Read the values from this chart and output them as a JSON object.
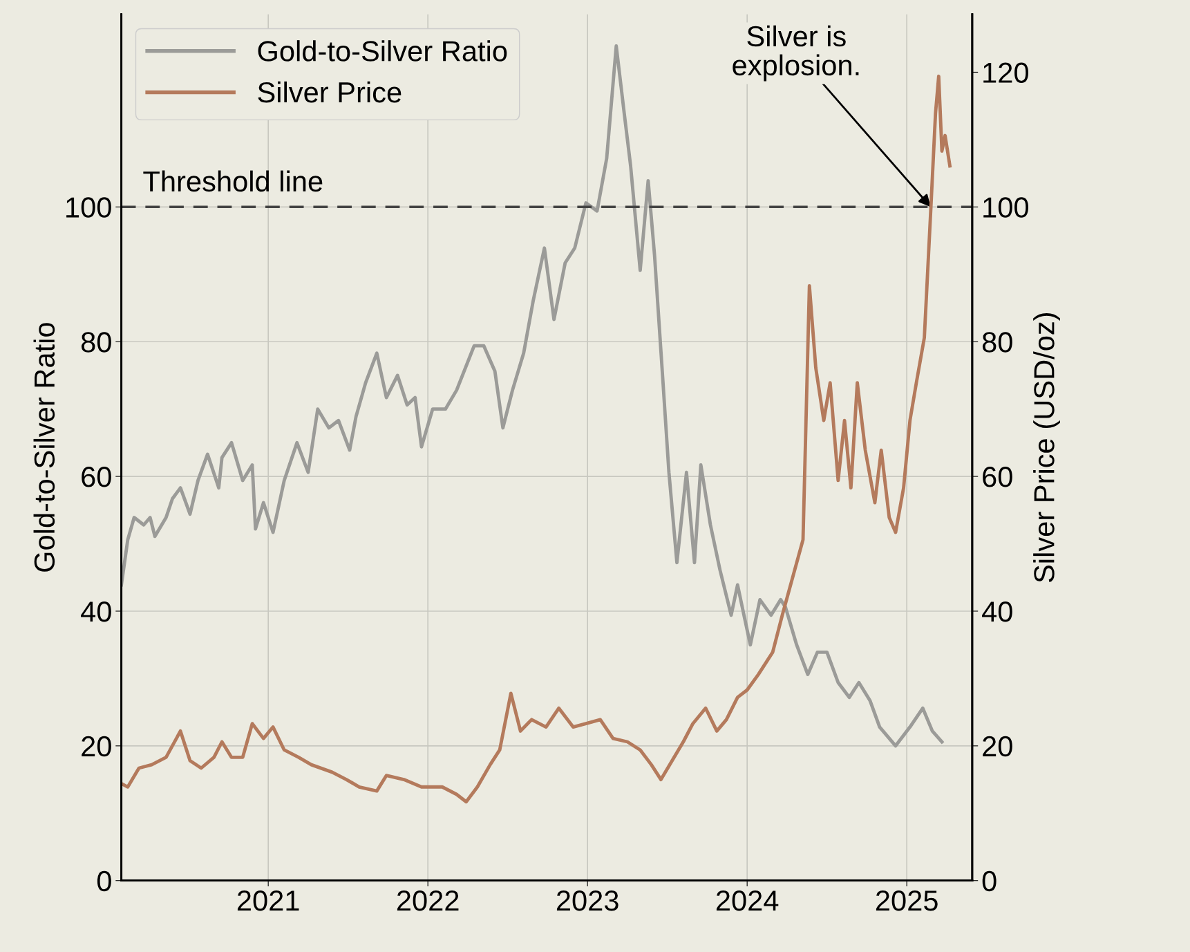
{
  "chart_data": {
    "type": "line",
    "xlabel": null,
    "ylabel": "Gold-to-Silver Ratio",
    "y2label": "Silver Price (USD/oz)",
    "xlim": [
      2020.08,
      2025.41
    ],
    "xticks": [
      2021,
      2022,
      2023,
      2024,
      2025
    ],
    "ylim": [
      0,
      128.6
    ],
    "yticks": [
      0,
      20,
      40,
      60,
      80,
      100
    ],
    "y2lim": [
      0,
      128.6
    ],
    "y2ticks": [
      0,
      20,
      40,
      60,
      80,
      100,
      120
    ],
    "grid": true,
    "legend": "top left",
    "marker": "none",
    "line_style": "solid",
    "ref_lines": [
      {
        "axis": "y",
        "value": 100,
        "label": "Threshold line",
        "color": "#444444",
        "line_style": "dashed"
      }
    ],
    "annotations": [
      {
        "text": "Silver is\nexplosion.",
        "x": 2025.15,
        "y": 100
      }
    ],
    "series": [
      {
        "name": "Gold-to-Silver Ratio",
        "color": "#9b9b98",
        "axis": "y",
        "x": [
          2020.08,
          2020.12,
          2020.16,
          2020.22,
          2020.26,
          2020.29,
          2020.36,
          2020.4,
          2020.45,
          2020.51,
          2020.56,
          2020.62,
          2020.69,
          2020.71,
          2020.77,
          2020.84,
          2020.9,
          2020.92,
          2020.97,
          2021.03,
          2021.1,
          2021.18,
          2021.25,
          2021.31,
          2021.38,
          2021.44,
          2021.51,
          2021.55,
          2021.61,
          2021.68,
          2021.74,
          2021.81,
          2021.87,
          2021.92,
          2021.96,
          2022.03,
          2022.11,
          2022.18,
          2022.29,
          2022.35,
          2022.42,
          2022.47,
          2022.53,
          2022.6,
          2022.66,
          2022.73,
          2022.79,
          2022.86,
          2022.92,
          2022.99,
          2023.06,
          2023.12,
          2023.18,
          2023.23,
          2023.27,
          2023.33,
          2023.38,
          2023.42,
          2023.47,
          2023.51,
          2023.56,
          2023.62,
          2023.67,
          2023.71,
          2023.77,
          2023.83,
          2023.9,
          2023.94,
          2023.98,
          2024.02,
          2024.08,
          2024.15,
          2024.21,
          2024.24,
          2024.31,
          2024.38,
          2024.44,
          2024.5,
          2024.57,
          2024.64,
          2024.7,
          2024.77,
          2024.83,
          2024.93,
          2025.02,
          2025.1,
          2025.16,
          2025.22
        ],
        "values": [
          43.9,
          50.6,
          53.9,
          52.8,
          53.9,
          51.1,
          53.9,
          56.7,
          58.3,
          54.4,
          59.4,
          63.3,
          58.3,
          62.8,
          65,
          59.4,
          61.7,
          52.2,
          56.1,
          51.7,
          59.4,
          65,
          60.6,
          70,
          67.2,
          68.3,
          63.9,
          68.9,
          73.9,
          78.3,
          71.7,
          75,
          70.6,
          71.7,
          64.4,
          70,
          70,
          72.8,
          79.4,
          79.4,
          75.6,
          67.2,
          72.8,
          78.3,
          86.1,
          93.9,
          83.3,
          91.7,
          93.9,
          100.6,
          99.4,
          107.2,
          123.9,
          113.9,
          106.1,
          90.6,
          103.9,
          92.8,
          75,
          60.6,
          47.2,
          60.6,
          47.2,
          61.7,
          52.8,
          46.1,
          39.4,
          43.9,
          39.4,
          35,
          41.7,
          39.4,
          41.7,
          40.6,
          35,
          30.6,
          33.9,
          33.9,
          29.4,
          27.2,
          29.4,
          26.7,
          22.8,
          20,
          22.8,
          25.6,
          22.2,
          20.6
        ]
      },
      {
        "name": "Silver Price",
        "color": "#b47a5c",
        "axis": "y2",
        "x": [
          2020.08,
          2020.12,
          2020.19,
          2020.27,
          2020.36,
          2020.45,
          2020.51,
          2020.58,
          2020.66,
          2020.71,
          2020.77,
          2020.84,
          2020.9,
          2020.97,
          2021.03,
          2021.1,
          2021.19,
          2021.27,
          2021.4,
          2021.49,
          2021.57,
          2021.68,
          2021.74,
          2021.85,
          2021.96,
          2022.09,
          2022.18,
          2022.24,
          2022.31,
          2022.39,
          2022.45,
          2022.52,
          2022.58,
          2022.65,
          2022.74,
          2022.82,
          2022.91,
          2022.99,
          2023.08,
          2023.16,
          2023.25,
          2023.33,
          2023.4,
          2023.46,
          2023.53,
          2023.6,
          2023.66,
          2023.74,
          2023.81,
          2023.87,
          2023.94,
          2024.0,
          2024.07,
          2024.16,
          2024.22,
          2024.35,
          2024.39,
          2024.43,
          2024.48,
          2024.52,
          2024.57,
          2024.61,
          2024.65,
          2024.69,
          2024.74,
          2024.8,
          2024.84,
          2024.89,
          2024.93,
          2024.98,
          2025.02,
          2025.06,
          2025.11,
          2025.15,
          2025.18,
          2025.2,
          2025.22,
          2025.24,
          2025.27
        ],
        "values": [
          14.4,
          13.9,
          16.7,
          17.2,
          18.3,
          22.2,
          17.8,
          16.7,
          18.3,
          20.6,
          18.3,
          18.3,
          23.3,
          21.1,
          22.8,
          19.4,
          18.3,
          17.2,
          16.1,
          15,
          13.9,
          13.3,
          15.6,
          15,
          13.9,
          13.9,
          12.8,
          11.7,
          13.9,
          17.2,
          19.4,
          27.8,
          22.2,
          23.9,
          22.8,
          25.6,
          22.8,
          23.3,
          23.9,
          21.1,
          20.6,
          19.4,
          17.2,
          15,
          17.8,
          20.6,
          23.3,
          25.6,
          22.2,
          23.9,
          27.2,
          28.3,
          30.6,
          33.9,
          39.4,
          50.6,
          88.3,
          76.1,
          68.3,
          73.9,
          59.4,
          68.3,
          58.3,
          73.9,
          63.9,
          56.1,
          63.9,
          53.9,
          51.7,
          58.3,
          68.3,
          73.9,
          80.6,
          99.4,
          113.9,
          119.4,
          108.3,
          110.6,
          106.1
        ]
      }
    ]
  }
}
